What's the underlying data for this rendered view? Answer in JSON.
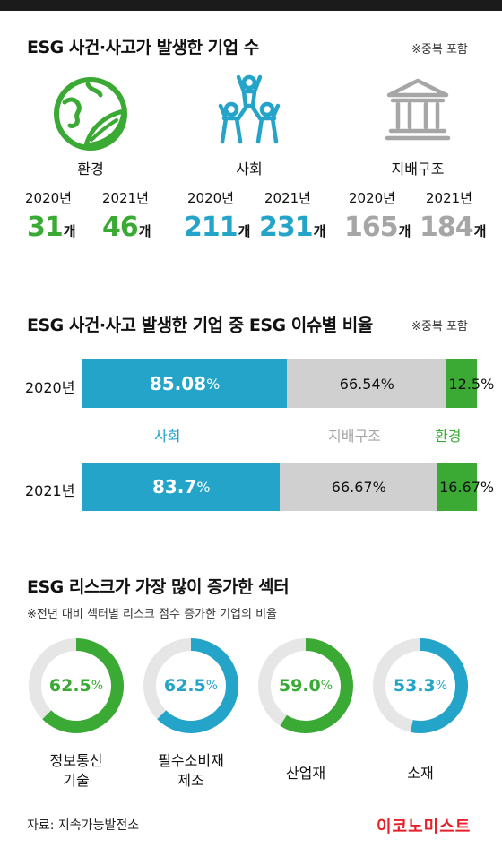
{
  "colors": {
    "green": "#3aaa35",
    "blue": "#23a4c8",
    "gray": "#a6a6a6",
    "light_gray": "#d0d0d0",
    "ring_bg": "#e6e6e6",
    "brand_red": "#e8202a"
  },
  "section1": {
    "title": "ESG 사건·사고가 발생한 기업 수",
    "note": "※중복 포함",
    "unit": "개",
    "categories": [
      {
        "label": "환경",
        "icon": "globe-leaf-icon",
        "years": [
          "2020년",
          "2021년"
        ],
        "values": [
          "31",
          "46"
        ]
      },
      {
        "label": "사회",
        "icon": "people-pyramid-icon",
        "years": [
          "2020년",
          "2021년"
        ],
        "values": [
          "211",
          "231"
        ]
      },
      {
        "label": "지배구조",
        "icon": "building-columns-icon",
        "years": [
          "2020년",
          "2021년"
        ],
        "values": [
          "165",
          "184"
        ]
      }
    ]
  },
  "section2": {
    "title": "ESG 사건·사고 발생한 기업 중 ESG 이슈별 비율",
    "note": "※중복 포함",
    "legend": [
      "사회",
      "지배구조",
      "환경"
    ]
  },
  "section3": {
    "title": "ESG 리스크가 가장 많이 증가한 섹터",
    "subtitle": "※전년 대비 섹터별 리스크 점수 증가한 기업의 비율"
  },
  "chart_data": [
    {
      "type": "bar",
      "title": "ESG 사건·사고가 발생한 기업 수",
      "categories": [
        "환경",
        "사회",
        "지배구조"
      ],
      "series": [
        {
          "name": "2020년",
          "values": [
            31,
            211,
            165
          ]
        },
        {
          "name": "2021년",
          "values": [
            46,
            231,
            184
          ]
        }
      ]
    },
    {
      "type": "bar",
      "title": "ESG 사건·사고 발생한 기업 중 ESG 이슈별 비율",
      "categories": [
        "2020년",
        "2021년"
      ],
      "series": [
        {
          "name": "사회",
          "values": [
            85.08,
            83.7
          ],
          "labels": [
            "85.08",
            "83.7"
          ]
        },
        {
          "name": "지배구조",
          "values": [
            66.54,
            66.67
          ],
          "labels": [
            "66.54%",
            "66.67%"
          ]
        },
        {
          "name": "환경",
          "values": [
            12.5,
            16.67
          ],
          "labels": [
            "12.5%",
            "16.67%"
          ]
        }
      ]
    },
    {
      "type": "pie",
      "title": "ESG 리스크가 가장 많이 증가한 섹터",
      "categories": [
        "정보통신 기술",
        "필수소비재 제조",
        "산업재",
        "소재"
      ],
      "label_lines": [
        [
          "정보통신",
          "기술"
        ],
        [
          "필수소비재",
          "제조"
        ],
        [
          "산업재"
        ],
        [
          "소재"
        ]
      ],
      "values": [
        62.5,
        62.5,
        59.0,
        53.3
      ],
      "labels": [
        "62.5",
        "62.5",
        "59.0",
        "53.3"
      ],
      "colors": [
        "green",
        "blue",
        "green",
        "blue"
      ]
    }
  ],
  "footer": {
    "source": "자료: 지속가능발전소",
    "brand": "이코노미스트"
  }
}
